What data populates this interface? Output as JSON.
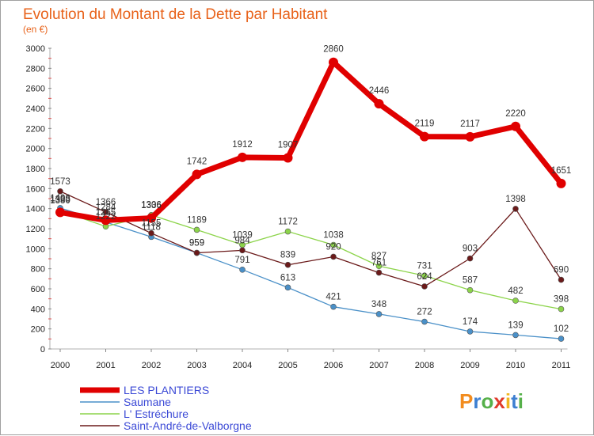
{
  "chart_data": {
    "type": "line",
    "title": "Evolution du Montant de la Dette par Habitant",
    "subtitle": "(en €)",
    "xlabel": "",
    "ylabel": "",
    "categories": [
      "2000",
      "2001",
      "2002",
      "2003",
      "2004",
      "2005",
      "2006",
      "2007",
      "2008",
      "2009",
      "2010",
      "2011"
    ],
    "ylim": [
      0,
      3000
    ],
    "yticks": [
      0,
      200,
      400,
      600,
      800,
      1000,
      1200,
      1400,
      1600,
      1800,
      2000,
      2200,
      2400,
      2600,
      2800,
      3000
    ],
    "grid": false,
    "legend_position": "bottom-left",
    "series": [
      {
        "name": "LES PLANTIERS",
        "color": "#e00000",
        "values": [
          1363,
          1284,
          1306,
          1742,
          1912,
          1907,
          2860,
          2446,
          2119,
          2117,
          2220,
          1651
        ]
      },
      {
        "name": "Saumane",
        "color": "#4a90c8",
        "values": [
          1406,
          1265,
          1118,
          959,
          791,
          613,
          421,
          348,
          272,
          174,
          139,
          102
        ]
      },
      {
        "name": "L' Estréchure",
        "color": "#8cd44a",
        "values": [
          1380,
          1222,
          1336,
          1189,
          1039,
          1172,
          1038,
          827,
          731,
          587,
          482,
          398
        ]
      },
      {
        "name": "Saint-André-de-Valborgne",
        "color": "#6b1a1a",
        "values": [
          1573,
          1366,
          1155,
          959,
          984,
          839,
          920,
          761,
          624,
          903,
          1398,
          690
        ]
      }
    ]
  },
  "logo": {
    "text": "Proxiti"
  }
}
